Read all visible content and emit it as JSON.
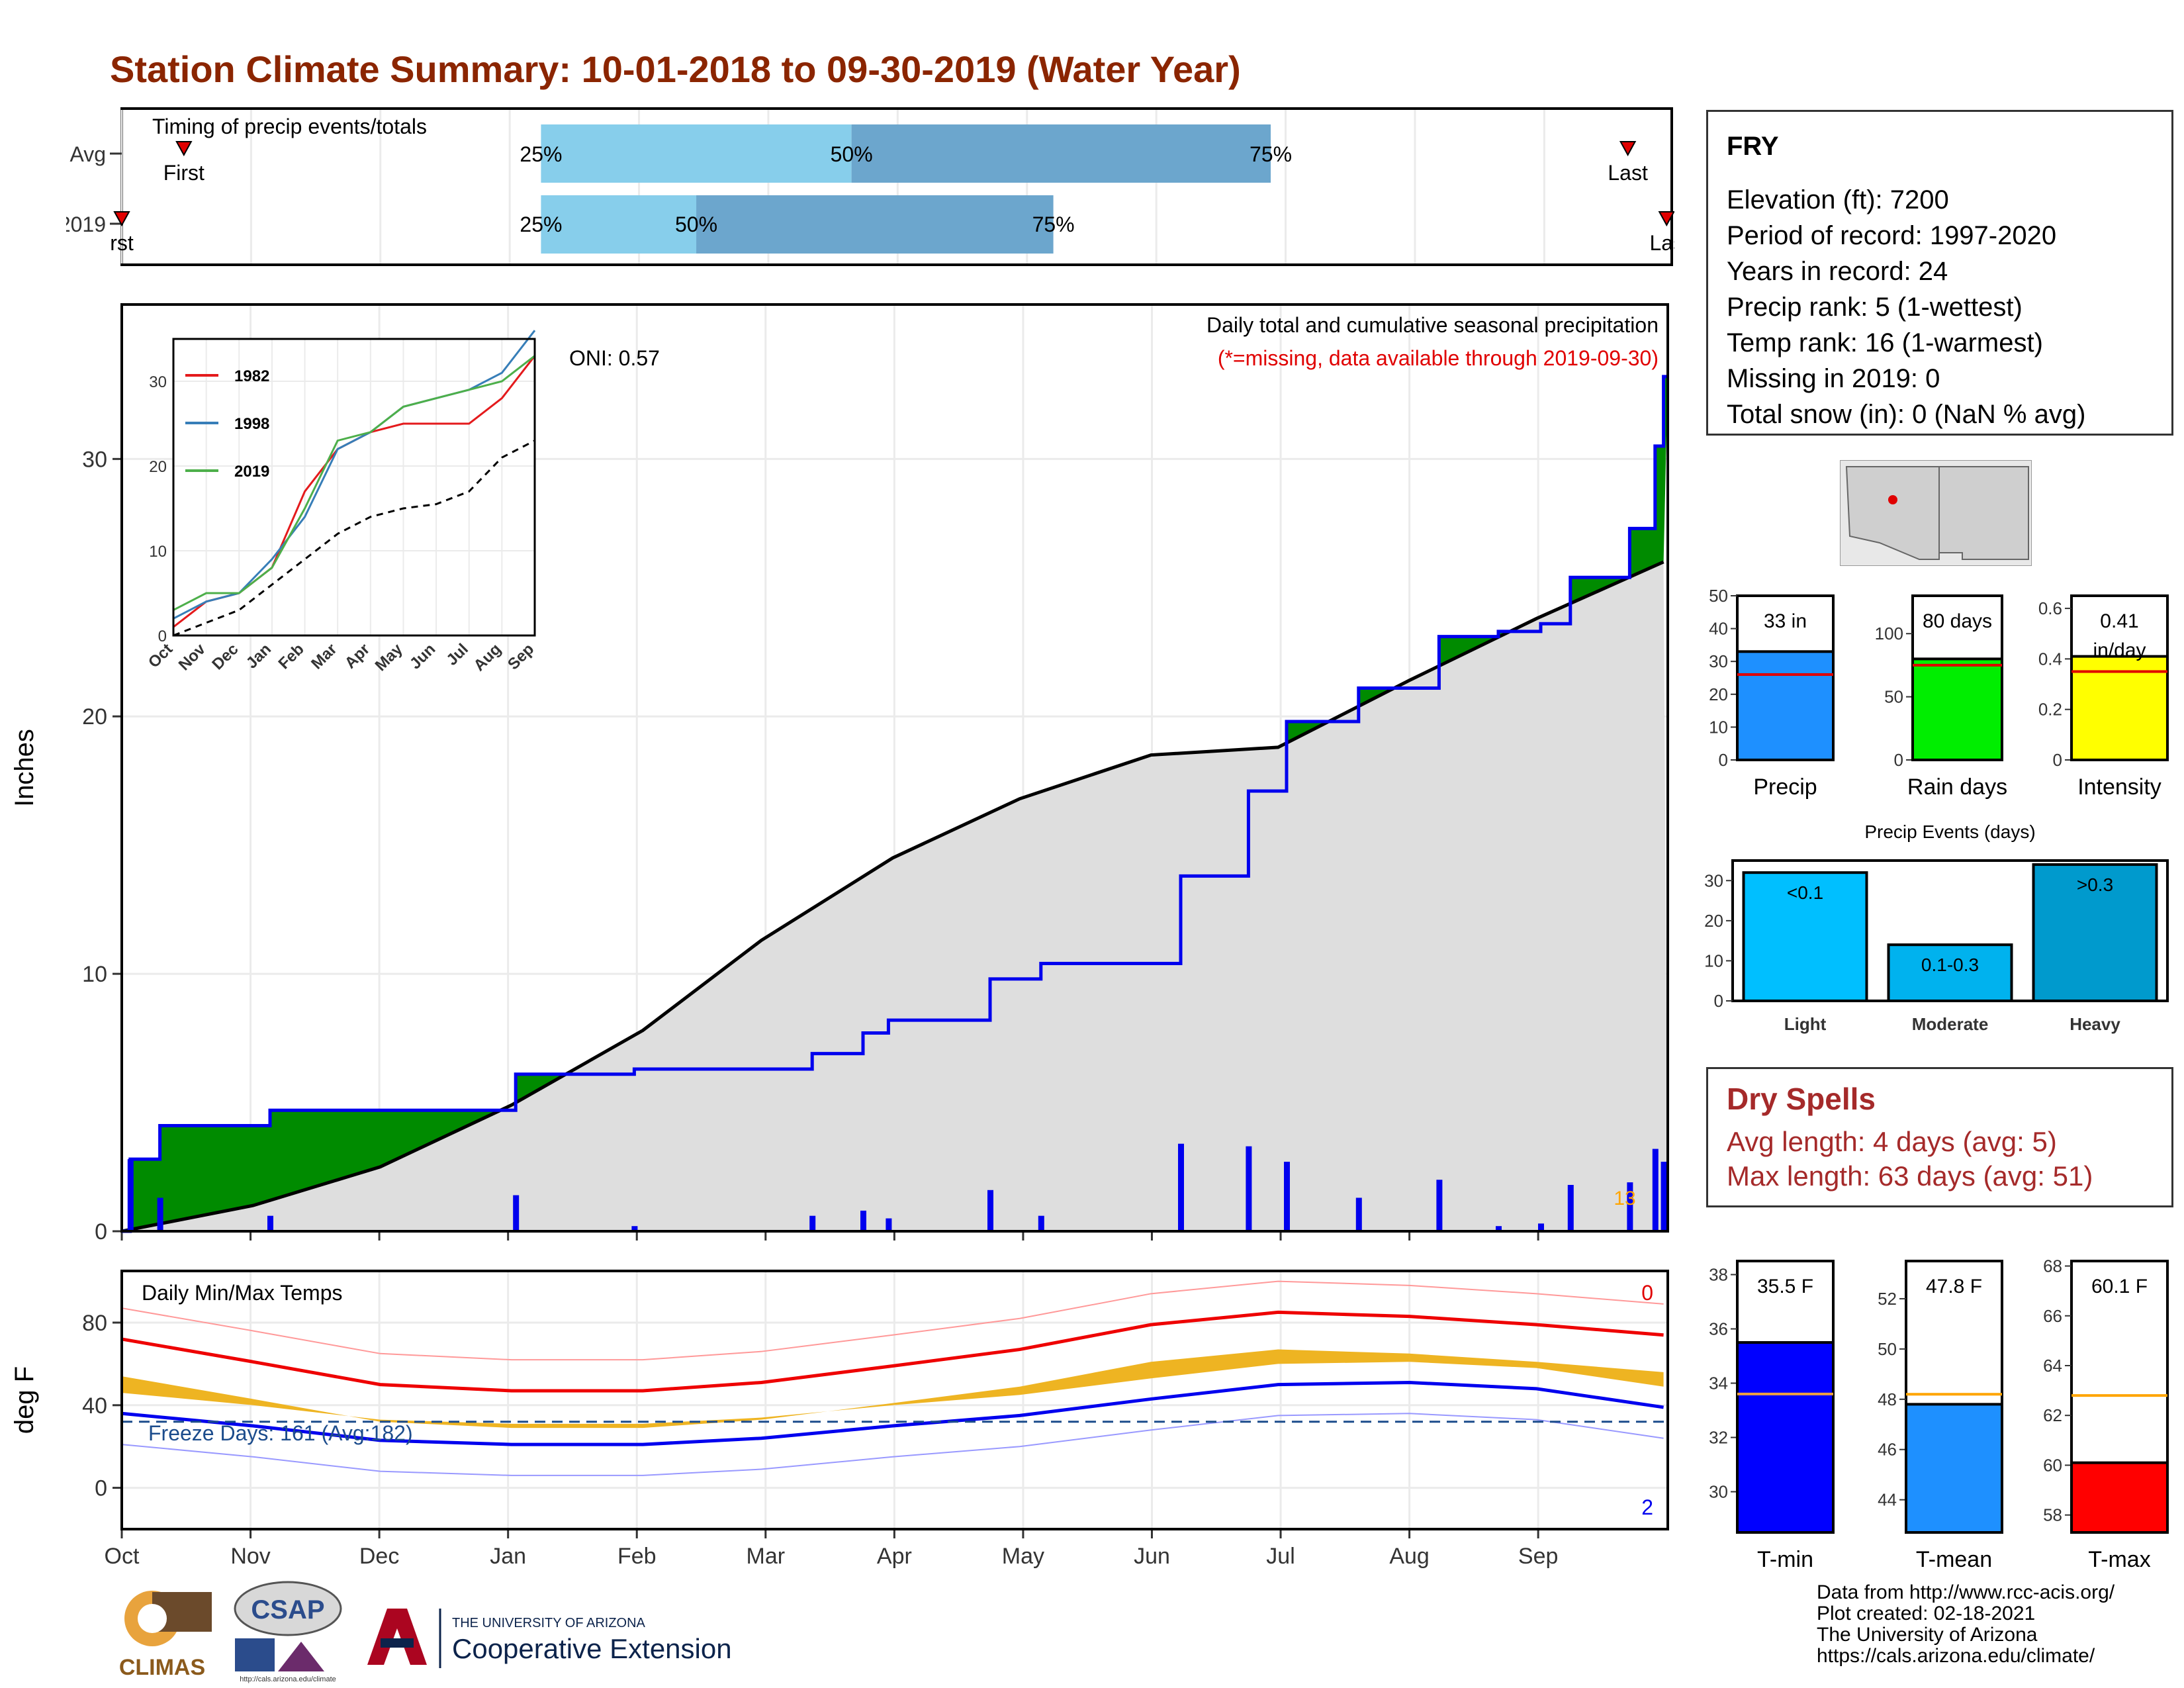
{
  "title": "Station Climate Summary: 10-01-2018 to 09-30-2019 (Water Year)",
  "timing": {
    "title": "Timing of precip events/totals",
    "rows": [
      {
        "label": "Avg",
        "p25": 0.27,
        "p50": 0.47,
        "p75": 0.74,
        "first": 0.04,
        "last": 0.97
      },
      {
        "label": "2019",
        "p25": 0.27,
        "p50": 0.37,
        "p75": 0.6,
        "first": 0.0,
        "last": 0.995
      }
    ],
    "p25_label": "25%",
    "p50_label": "50%",
    "p75_label": "75%",
    "first_label": "First",
    "last_label": "Last",
    "first_label_2019": "rst",
    "last_label_2019": "Las"
  },
  "chart_data": [
    {
      "type": "area",
      "title": "Daily total and cumulative seasonal precipitation",
      "subtitle": "(*=missing, data available through 2019-09-30)",
      "ylabel": "Inches",
      "ylim": [
        0,
        36
      ],
      "yticks": [
        0,
        10,
        20,
        30
      ],
      "months": [
        "Oct",
        "Nov",
        "Dec",
        "Jan",
        "Feb",
        "Mar",
        "Apr",
        "May",
        "Jun",
        "Jul",
        "Aug",
        "Sep"
      ],
      "oni": "ONI: 0.57",
      "extreme_count": "13",
      "series": [
        {
          "name": "2019 cumulative",
          "x_day": [
            0,
            2,
            9,
            35,
            67,
            93,
            121,
            163,
            175,
            181,
            205,
            217,
            228,
            250,
            266,
            275,
            292,
            311,
            325,
            335,
            342,
            356,
            362,
            364
          ],
          "y": [
            0,
            2.8,
            4.1,
            4.7,
            4.7,
            6.1,
            6.3,
            6.9,
            7.7,
            8.2,
            9.8,
            10.4,
            10.4,
            13.8,
            17.1,
            19.8,
            21.1,
            23.1,
            23.3,
            23.6,
            25.4,
            27.3,
            30.5,
            33.2
          ]
        },
        {
          "name": "Average cumulative",
          "x_day": [
            0,
            31,
            61,
            92,
            123,
            151,
            182,
            212,
            243,
            273,
            304,
            334,
            364
          ],
          "y": [
            0,
            1.0,
            2.5,
            4.9,
            7.8,
            11.3,
            14.5,
            16.8,
            18.5,
            18.8,
            21.4,
            23.8,
            26.0
          ]
        }
      ]
    },
    {
      "type": "line",
      "title": "inset",
      "ylim": [
        0,
        35
      ],
      "yticks": [
        0,
        10,
        20,
        30
      ],
      "months": [
        "Oct",
        "Nov",
        "Dec",
        "Jan",
        "Feb",
        "Mar",
        "Apr",
        "May",
        "Jun",
        "Jul",
        "Aug",
        "Sep"
      ],
      "series": [
        {
          "name": "1982",
          "color": "#e41a1c",
          "y": [
            1,
            4,
            5,
            8,
            17,
            22,
            24,
            25,
            25,
            25,
            28,
            33
          ]
        },
        {
          "name": "1998",
          "color": "#377eb8",
          "y": [
            2,
            4,
            5,
            9,
            14,
            22,
            24,
            27,
            28,
            29,
            31,
            36
          ]
        },
        {
          "name": "2019",
          "color": "#4daf4a",
          "y": [
            3,
            5,
            5,
            8,
            15,
            23,
            24,
            27,
            28,
            29,
            30,
            33
          ]
        },
        {
          "name": "Average",
          "color": "#000000",
          "y": [
            0,
            1.5,
            3,
            6,
            9,
            12,
            14,
            15,
            15.5,
            17,
            21,
            23
          ]
        }
      ]
    },
    {
      "type": "line",
      "title": "Daily Min/Max Temps",
      "ylabel": "deg F",
      "ylim": [
        -20,
        105
      ],
      "yticks": [
        0,
        40,
        80
      ],
      "freeze_days": "Freeze Days: 161 (Avg:182)",
      "count_hot": "0",
      "count_cold": "2",
      "series": [
        {
          "name": "Avg max",
          "x_day": [
            0,
            31,
            61,
            92,
            123,
            151,
            182,
            212,
            243,
            273,
            304,
            334,
            364
          ],
          "y": [
            72,
            61,
            50,
            47,
            47,
            51,
            59,
            67,
            79,
            85,
            83,
            79,
            74
          ]
        },
        {
          "name": "Avg min",
          "x_day": [
            0,
            31,
            61,
            92,
            123,
            151,
            182,
            212,
            243,
            273,
            304,
            334,
            364
          ],
          "y": [
            36,
            30,
            23,
            21,
            21,
            24,
            30,
            35,
            43,
            50,
            51,
            48,
            39
          ]
        }
      ]
    },
    {
      "type": "bar",
      "title": "Precip",
      "categories": [
        "Precip"
      ],
      "values": [
        33
      ],
      "avg": 26,
      "ylim": [
        0,
        50
      ],
      "yticks": [
        0,
        10,
        20,
        30,
        40,
        50
      ],
      "label": "33 in",
      "color": "#1e90ff"
    },
    {
      "type": "bar",
      "title": "Rain days",
      "categories": [
        "Rain days"
      ],
      "values": [
        80
      ],
      "avg": 75,
      "ylim": [
        0,
        130
      ],
      "yticks": [
        0,
        50,
        100
      ],
      "label": "80 days",
      "color": "#00ee00"
    },
    {
      "type": "bar",
      "title": "Intensity",
      "categories": [
        "Intensity"
      ],
      "values": [
        0.41
      ],
      "avg": 0.35,
      "ylim": [
        0,
        0.65
      ],
      "yticks": [
        0.0,
        0.2,
        0.4,
        0.6
      ],
      "label": "0.41 in/day",
      "color": "#ffff00"
    },
    {
      "type": "bar",
      "title": "Precip Events (days)",
      "categories": [
        "Light",
        "Moderate",
        "Heavy"
      ],
      "values": [
        32,
        14,
        34
      ],
      "labels": [
        "<0.1",
        "0.1-0.3",
        ">0.3"
      ],
      "colors": [
        "#00bfff",
        "#00b2ee",
        "#009acd"
      ],
      "ylim": [
        0,
        35
      ],
      "yticks": [
        0,
        10,
        20,
        30
      ]
    },
    {
      "type": "bar",
      "title": "T-min",
      "categories": [
        "T-min"
      ],
      "values": [
        35.5
      ],
      "avg": 33.6,
      "ylim": [
        28.5,
        38.5
      ],
      "yticks": [
        30,
        32,
        34,
        36,
        38
      ],
      "label": "35.5 F",
      "color": "#0000ff"
    },
    {
      "type": "bar",
      "title": "T-mean",
      "categories": [
        "T-mean"
      ],
      "values": [
        47.8
      ],
      "avg": 48.2,
      "ylim": [
        42.7,
        53.5
      ],
      "yticks": [
        44,
        46,
        48,
        50,
        52
      ],
      "label": "47.8 F",
      "color": "#1e90ff"
    },
    {
      "type": "bar",
      "title": "T-max",
      "categories": [
        "T-max"
      ],
      "values": [
        60.1
      ],
      "avg": 62.8,
      "ylim": [
        57.3,
        68.2
      ],
      "yticks": [
        58,
        60,
        62,
        64,
        66,
        68
      ],
      "label": "60.1 F",
      "color": "#ff0000"
    }
  ],
  "info": {
    "station": "FRY",
    "lines": [
      "Elevation (ft): 7200",
      "Period of record: 1997-2020",
      "Years in record: 24",
      "Precip rank: 5 (1-wettest)",
      "Temp rank: 16 (1-warmest)",
      "Missing in 2019: 0",
      "Total snow (in): 0 (NaN % avg)"
    ]
  },
  "dry_spells": {
    "title": "Dry Spells",
    "avg": "Avg length: 4 days (avg: 5)",
    "max": "Max length: 63 days (avg: 51)"
  },
  "footer": {
    "lines": [
      "Data from http://www.rcc-acis.org/",
      "Plot created: 02-18-2021",
      "The University of Arizona",
      "https://cals.arizona.edu/climate/"
    ]
  },
  "logos": {
    "climas": "CLIMAS",
    "csap": "CSAP",
    "csap_url": "http://cals.arizona.edu/climate",
    "ua_small": "THE UNIVERSITY OF ARIZONA",
    "ua_ext": "Cooperative Extension"
  }
}
